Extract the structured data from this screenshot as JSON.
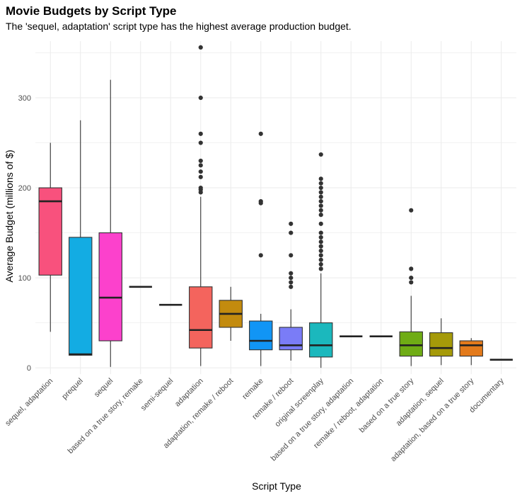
{
  "chart_data": {
    "type": "box",
    "title": "Movie Budgets by Script Type",
    "subtitle": "The 'sequel, adaptation' script type has the highest average production budget.",
    "xlabel": "Script Type",
    "ylabel": "Average Budget (millions of $)",
    "ylim": [
      -7,
      363
    ],
    "yticks": [
      0,
      100,
      200,
      300
    ],
    "grid": true,
    "legend": "none",
    "categories": [
      {
        "name": "sequel, adaptation",
        "color": "#F8517D",
        "q1": 103,
        "median": 185,
        "q3": 200,
        "lo": 40,
        "hi": 250,
        "outliers": []
      },
      {
        "name": "prequel",
        "color": "#13ACE3",
        "q1": 14,
        "median": 15,
        "q3": 145,
        "lo": 14,
        "hi": 275,
        "outliers": []
      },
      {
        "name": "sequel",
        "color": "#FC41CC",
        "q1": 30,
        "median": 78,
        "q3": 150,
        "lo": 1,
        "hi": 320,
        "outliers": []
      },
      {
        "name": "based on a true story, remake",
        "color": "#444444",
        "q1": 90,
        "median": 90,
        "q3": 90,
        "lo": 90,
        "hi": 90,
        "outliers": []
      },
      {
        "name": "semi-sequel",
        "color": "#444444",
        "q1": 70,
        "median": 70,
        "q3": 70,
        "lo": 70,
        "hi": 70,
        "outliers": []
      },
      {
        "name": "adaptation",
        "color": "#F4645D",
        "q1": 22,
        "median": 42,
        "q3": 90,
        "lo": 2,
        "hi": 190,
        "outliers": [
          195,
          198,
          200,
          212,
          218,
          225,
          230,
          250,
          260,
          300,
          356
        ]
      },
      {
        "name": "adaptation, remake / reboot",
        "color": "#C38B0E",
        "q1": 45,
        "median": 60,
        "q3": 75,
        "lo": 30,
        "hi": 90,
        "outliers": []
      },
      {
        "name": "remake",
        "color": "#1195F5",
        "q1": 20,
        "median": 30,
        "q3": 52,
        "lo": 2,
        "hi": 60,
        "outliers": [
          125,
          183,
          185,
          260
        ]
      },
      {
        "name": "remake / reboot",
        "color": "#7A7CF7",
        "q1": 20,
        "median": 25,
        "q3": 45,
        "lo": 8,
        "hi": 65,
        "outliers": [
          90,
          95,
          100,
          105,
          125,
          150,
          160
        ]
      },
      {
        "name": "original screenplay",
        "color": "#1BB8BD",
        "q1": 12,
        "median": 25,
        "q3": 50,
        "lo": 0,
        "hi": 105,
        "outliers": [
          110,
          115,
          120,
          125,
          130,
          135,
          140,
          145,
          150,
          160,
          170,
          175,
          180,
          185,
          190,
          195,
          200,
          205,
          210,
          237
        ]
      },
      {
        "name": "based on a true story, adaptation",
        "color": "#444444",
        "q1": 35,
        "median": 35,
        "q3": 35,
        "lo": 35,
        "hi": 35,
        "outliers": []
      },
      {
        "name": "remake / reboot, adaptation",
        "color": "#444444",
        "q1": 35,
        "median": 35,
        "q3": 35,
        "lo": 35,
        "hi": 35,
        "outliers": []
      },
      {
        "name": "based on a true story",
        "color": "#6FAC15",
        "q1": 13,
        "median": 25,
        "q3": 40,
        "lo": 2,
        "hi": 80,
        "outliers": [
          95,
          100,
          110,
          175
        ]
      },
      {
        "name": "adaptation, sequel",
        "color": "#A59A09",
        "q1": 13,
        "median": 22,
        "q3": 39,
        "lo": 3,
        "hi": 55,
        "outliers": []
      },
      {
        "name": "adaptation, based on a true story",
        "color": "#E37A1B",
        "q1": 13,
        "median": 25,
        "q3": 30,
        "lo": 3,
        "hi": 33,
        "outliers": []
      },
      {
        "name": "documentary",
        "color": "#444444",
        "q1": 9,
        "median": 9,
        "q3": 9,
        "lo": 9,
        "hi": 9,
        "outliers": []
      }
    ]
  }
}
